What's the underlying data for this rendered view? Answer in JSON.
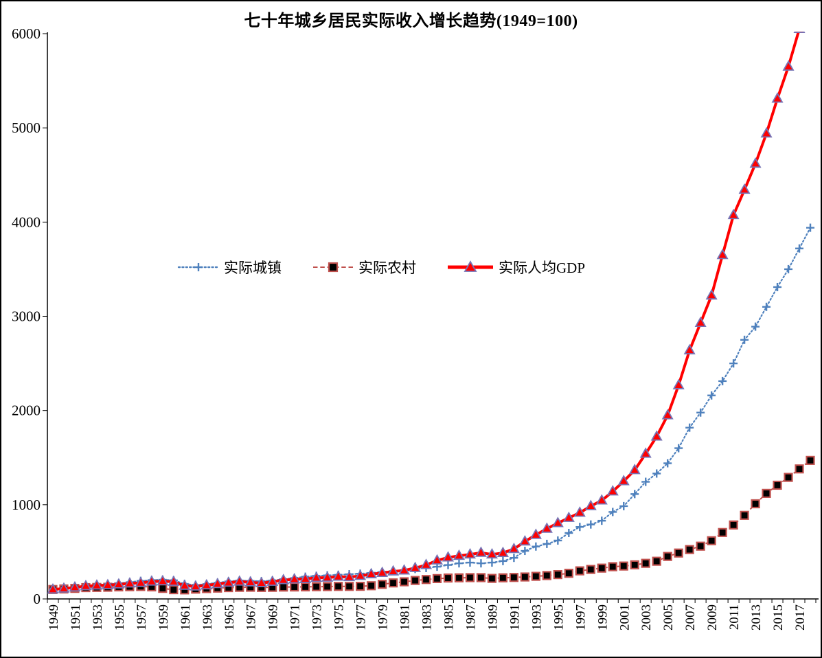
{
  "window": {
    "background": "#FFFFFF",
    "frame_border_color": "#000000"
  },
  "chart_data": {
    "type": "line",
    "title": "七十年城乡居民实际收入增长趋势(1949=100)",
    "xlabel": "",
    "ylabel": "",
    "ylim": [
      0,
      6000
    ],
    "y_tick_labels": [
      "0",
      "1000",
      "2000",
      "3000",
      "4000",
      "5000",
      "6000"
    ],
    "y_tick_values": [
      0,
      1000,
      2000,
      3000,
      4000,
      5000,
      6000
    ],
    "x_tick_label_every": 2,
    "x_tick_labels_shown": [
      "1949",
      "1951",
      "1953",
      "1955",
      "1957",
      "1959",
      "1961",
      "1963",
      "1965",
      "1967",
      "1969",
      "1971",
      "1973",
      "1975",
      "1977",
      "1979",
      "1981",
      "1983",
      "1985",
      "1987",
      "1989",
      "1991",
      "1993",
      "1995",
      "1997",
      "1999",
      "2001",
      "2003",
      "2005",
      "2007",
      "2009",
      "2011",
      "2013",
      "2015",
      "2017"
    ],
    "x_label_rotation_degrees": -90,
    "grid": false,
    "legend_position": "inside-left-middle",
    "axis_color": "#000000",
    "x": [
      1949,
      1950,
      1951,
      1952,
      1953,
      1954,
      1955,
      1956,
      1957,
      1958,
      1959,
      1960,
      1961,
      1962,
      1963,
      1964,
      1965,
      1966,
      1967,
      1968,
      1969,
      1970,
      1971,
      1972,
      1973,
      1974,
      1975,
      1976,
      1977,
      1978,
      1979,
      1980,
      1981,
      1982,
      1983,
      1984,
      1985,
      1986,
      1987,
      1988,
      1989,
      1990,
      1991,
      1992,
      1993,
      1994,
      1995,
      1996,
      1997,
      1998,
      1999,
      2000,
      2001,
      2002,
      2003,
      2004,
      2005,
      2006,
      2007,
      2008,
      2009,
      2010,
      2011,
      2012,
      2013,
      2014,
      2015,
      2016,
      2017,
      2018
    ],
    "series": [
      {
        "name": "实际城镇",
        "color": "#4F81BD",
        "line_style": "dotted",
        "line_width": 2.2,
        "marker": "plus",
        "values": [
          100,
          112,
          124,
          138,
          150,
          156,
          166,
          178,
          192,
          200,
          204,
          198,
          160,
          148,
          158,
          172,
          186,
          196,
          192,
          188,
          196,
          210,
          222,
          236,
          245,
          250,
          256,
          262,
          268,
          276,
          286,
          296,
          306,
          318,
          328,
          342,
          360,
          378,
          386,
          378,
          386,
          402,
          436,
          510,
          556,
          584,
          620,
          700,
          764,
          790,
          830,
          923,
          985,
          1113,
          1243,
          1331,
          1440,
          1600,
          1818,
          1978,
          2160,
          2312,
          2500,
          2750,
          2890,
          3100,
          3310,
          3500,
          3720,
          3940
        ]
      },
      {
        "name": "实际农村",
        "color": "#C0504D",
        "marker_fill": "#000000",
        "line_style": "dashed",
        "line_width": 2.0,
        "marker": "square",
        "values": [
          100,
          106,
          112,
          120,
          122,
          124,
          128,
          130,
          132,
          128,
          112,
          98,
          96,
          104,
          110,
          115,
          120,
          123,
          124,
          122,
          123,
          126,
          127,
          128,
          130,
          131,
          133,
          133,
          134,
          140,
          155,
          170,
          182,
          196,
          206,
          216,
          222,
          224,
          226,
          226,
          218,
          224,
          228,
          233,
          240,
          248,
          258,
          272,
          298,
          313,
          327,
          342,
          349,
          362,
          378,
          400,
          451,
          487,
          524,
          560,
          618,
          705,
          785,
          887,
          1010,
          1120,
          1207,
          1290,
          1380,
          1470
        ]
      },
      {
        "name": "实际人均GDP",
        "color": "#FF0000",
        "marker_stroke": "#7673B5",
        "line_style": "solid",
        "line_width": 4.0,
        "marker": "triangle",
        "values": [
          100,
          110,
          122,
          136,
          142,
          146,
          154,
          164,
          170,
          184,
          188,
          182,
          140,
          132,
          144,
          158,
          172,
          184,
          176,
          168,
          182,
          200,
          208,
          212,
          224,
          226,
          236,
          232,
          244,
          262,
          276,
          292,
          302,
          328,
          360,
          408,
          440,
          458,
          472,
          490,
          472,
          488,
          530,
          610,
          680,
          745,
          805,
          860,
          915,
          985,
          1045,
          1141,
          1250,
          1367,
          1541,
          1723,
          1949,
          2268,
          2639,
          2930,
          3221,
          3650,
          4074,
          4343,
          4620,
          4940,
          5310,
          5650,
          6050,
          6470
        ]
      }
    ]
  }
}
